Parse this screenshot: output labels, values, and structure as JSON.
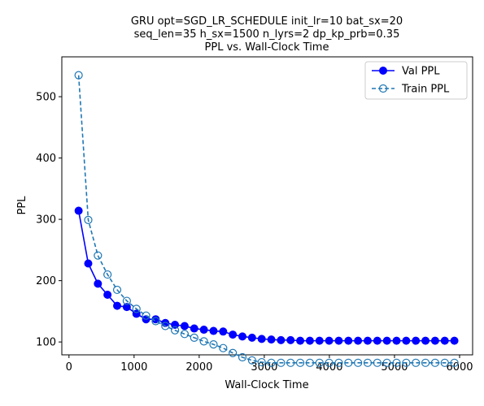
{
  "chart_data": {
    "type": "line",
    "title_lines": [
      "GRU opt=SGD_LR_SCHEDULE init_lr=10 bat_sx=20",
      "seq_len=35 h_sx=1500 n_lyrs=2 dp_kp_prb=0.35",
      "PPL vs. Wall-Clock Time"
    ],
    "xlabel": "Wall-Clock Time",
    "ylabel": "PPL",
    "xlim": [
      -110,
      6200
    ],
    "ylim": [
      79,
      565
    ],
    "xticks": [
      0,
      1000,
      2000,
      3000,
      4000,
      5000,
      6000
    ],
    "yticks": [
      100,
      200,
      300,
      400,
      500
    ],
    "legend_position": "top-right",
    "series": [
      {
        "name": "Val PPL",
        "color": "#0000ff",
        "line_style": "solid",
        "marker": "filled-circle",
        "x": [
          148,
          296,
          444,
          592,
          740,
          888,
          1036,
          1184,
          1332,
          1480,
          1628,
          1776,
          1924,
          2072,
          2220,
          2368,
          2516,
          2664,
          2812,
          2960,
          3108,
          3256,
          3404,
          3552,
          3700,
          3848,
          3996,
          4144,
          4292,
          4440,
          4588,
          4736,
          4884,
          5032,
          5180,
          5328,
          5476,
          5624,
          5772,
          5920
        ],
        "y": [
          314,
          228,
          195,
          177,
          159,
          157,
          146,
          137,
          137,
          131,
          128,
          126,
          122,
          120,
          118,
          117,
          112,
          109,
          107,
          105,
          104,
          103,
          103,
          102,
          102,
          102,
          102,
          102,
          102,
          102,
          102,
          102,
          102,
          102,
          102,
          102,
          102,
          102,
          102,
          102
        ]
      },
      {
        "name": "Train PPL",
        "color": "#1f77b4",
        "line_style": "dashed",
        "marker": "open-circle",
        "x": [
          148,
          296,
          444,
          592,
          740,
          888,
          1036,
          1184,
          1332,
          1480,
          1628,
          1776,
          1924,
          2072,
          2220,
          2368,
          2516,
          2664,
          2812,
          2960,
          3108,
          3256,
          3404,
          3552,
          3700,
          3848,
          3996,
          4144,
          4292,
          4440,
          4588,
          4736,
          4884,
          5032,
          5180,
          5328,
          5476,
          5624,
          5772,
          5920
        ],
        "y": [
          535,
          299,
          241,
          210,
          185,
          167,
          154,
          143,
          134,
          126,
          119,
          113,
          107,
          101,
          96,
          90,
          82,
          75,
          70,
          67,
          66,
          66,
          66,
          66,
          66,
          66,
          66,
          66,
          66,
          66,
          66,
          66,
          66,
          66,
          66,
          66,
          66,
          66,
          66,
          66
        ]
      }
    ]
  }
}
